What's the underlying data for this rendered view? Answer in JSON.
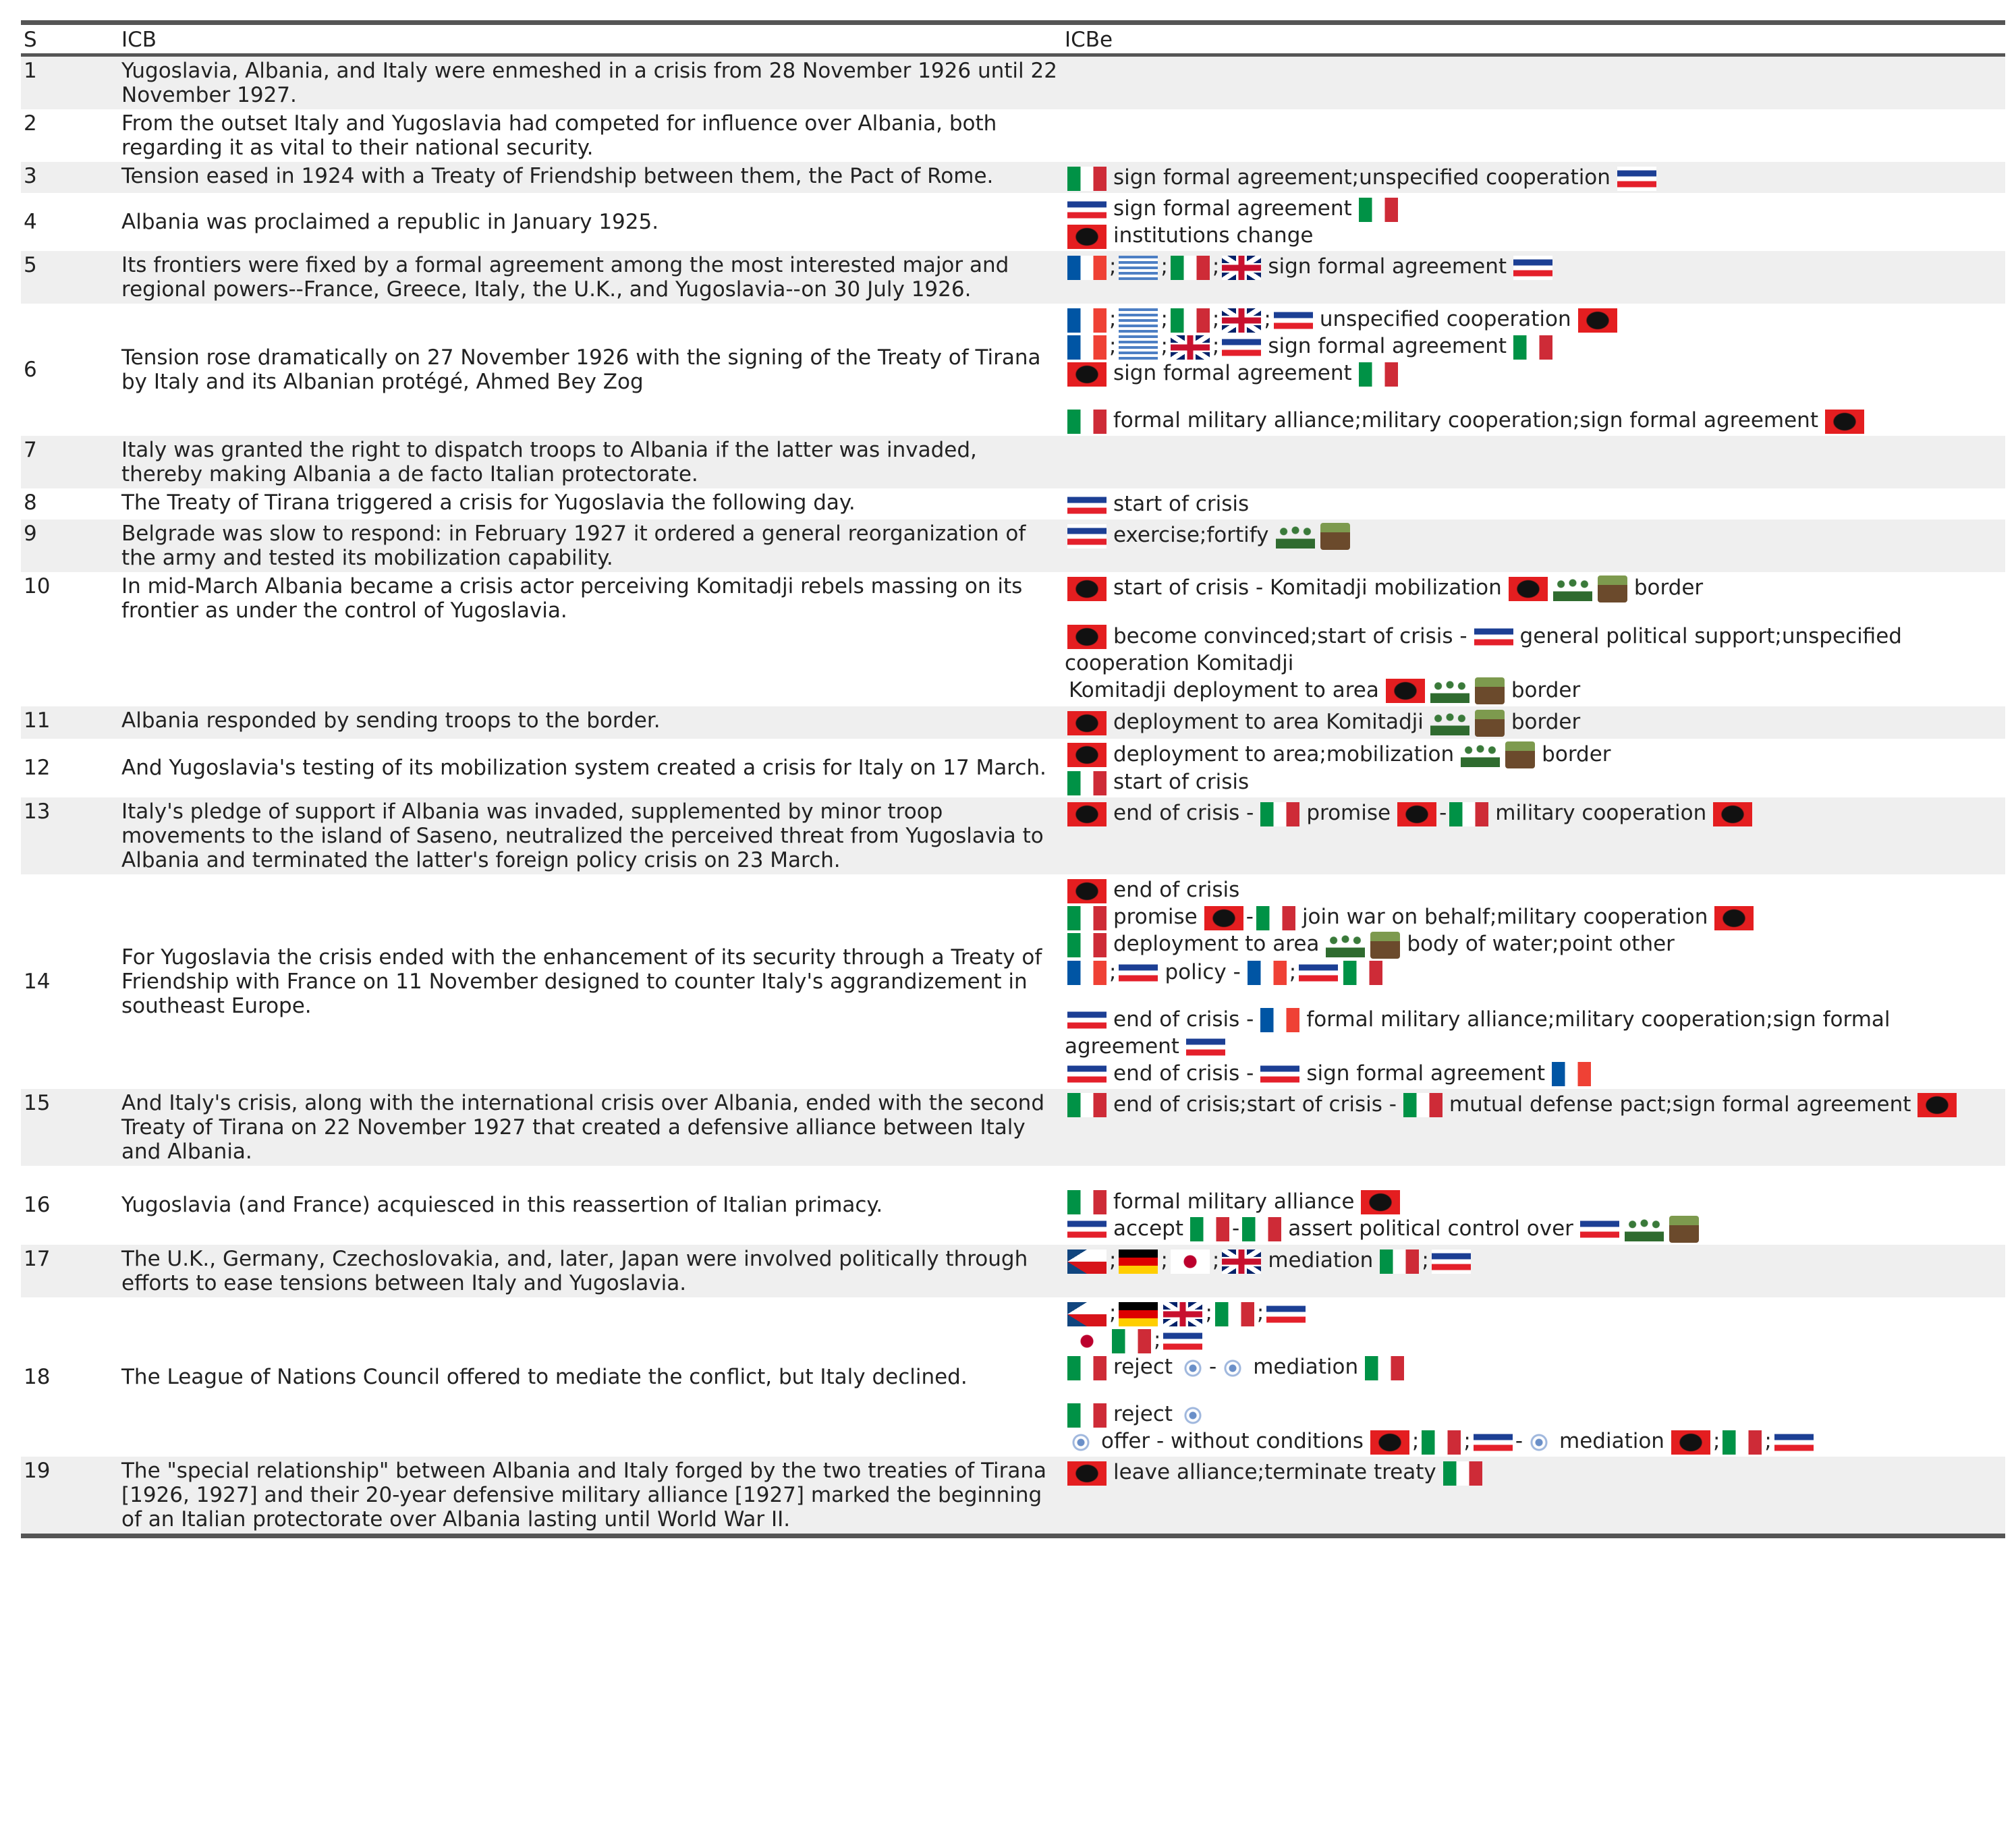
{
  "table": {
    "header": [
      "S",
      "ICB",
      "ICBe"
    ],
    "rows": [
      {
        "s": "1",
        "icb": "Yugoslavia, Albania, and Italy were enmeshed in a crisis from 28 November 1926 until 22 November 1927.",
        "lines": []
      },
      {
        "s": "2",
        "icb": "From the outset Italy and Yugoslavia had competed for influence over Albania, both regarding it as vital to their national security.",
        "lines": []
      },
      {
        "s": "3",
        "icb": "Tension eased in 1924 with a Treaty of Friendship between them, the Pact of Rome.",
        "lines": [
          [
            "sign formal agreement;unspecified cooperation"
          ]
        ]
      },
      {
        "s": "4",
        "icb": "Albania was proclaimed a republic in January 1925.",
        "lines": [
          [
            "sign formal agreement"
          ],
          [
            "institutions change"
          ]
        ]
      },
      {
        "s": "5",
        "icb": "Its frontiers were fixed by a formal agreement among the most interested major and regional powers--France, Greece, Italy, the U.K., and Yugoslavia--on 30 July 1926.",
        "lines": [
          [
            ";",
            ";",
            ";",
            "sign formal agreement"
          ]
        ]
      },
      {
        "s": "6",
        "icb": "Tension rose dramatically on 27 November 1926 with the signing of the Treaty of Tirana by Italy and its Albanian protégé, Ahmed Bey Zog",
        "lines": [
          [
            ";",
            ";",
            ";",
            ";",
            "unspecified cooperation"
          ],
          [
            ";",
            ";",
            ";",
            "sign formal agreement"
          ],
          [
            "sign formal agreement"
          ],
          [
            "formal military alliance;military cooperation;sign formal agreement"
          ]
        ]
      },
      {
        "s": "7",
        "icb": "Italy was granted the right to dispatch troops to Albania if the latter was invaded, thereby making Albania a de facto Italian protectorate.",
        "lines": []
      },
      {
        "s": "8",
        "icb": "The Treaty of Tirana triggered a crisis for Yugoslavia the following day.",
        "lines": [
          [
            "start of crisis"
          ]
        ]
      },
      {
        "s": "9",
        "icb": "Belgrade was slow to respond: in February 1927 it ordered a general reorganization of the army and tested its mobilization capability.",
        "lines": [
          [
            "exercise;fortify"
          ]
        ]
      },
      {
        "s": "10",
        "icb": "In mid-March Albania became a crisis actor perceiving Komitadji rebels massing on its frontier as under the control of Yugoslavia.",
        "lines": [
          [
            "start of crisis - Komitadji mobilization",
            "border"
          ],
          [
            "become convinced;start of crisis -",
            "general political support;unspecified cooperation Komitadji"
          ],
          [
            "Komitadji deployment to area",
            "border"
          ]
        ]
      },
      {
        "s": "11",
        "icb": "Albania responded by sending troops to the border.",
        "lines": [
          [
            "deployment to area Komitadji",
            "border"
          ]
        ]
      },
      {
        "s": "12",
        "icb": "And Yugoslavia's testing of its mobilization system created a crisis for Italy on 17 March.",
        "lines": [
          [
            "deployment to area;mobilization",
            "border"
          ],
          [
            "start of crisis"
          ]
        ]
      },
      {
        "s": "13",
        "icb": "Italy's pledge of support if Albania was invaded, supplemented by minor troop movements to the island of Saseno, neutralized the perceived threat from Yugoslavia to Albania and terminated the latter's foreign policy crisis on 23 March.",
        "lines": [
          [
            "end of crisis -",
            "promise",
            "-",
            "military cooperation"
          ]
        ]
      },
      {
        "s": "14",
        "icb": "For Yugoslavia the crisis ended with the enhancement of its security through a Treaty of Friendship with France on 11 November designed to counter Italy's aggrandizement in southeast Europe.",
        "lines": [
          [
            "end of crisis"
          ],
          [
            "promise",
            "-",
            "join war on behalf;military cooperation"
          ],
          [
            "deployment to area",
            "body of water;point other"
          ],
          [
            ";",
            "policy -",
            ";"
          ],
          [
            "end of crisis -",
            "formal military alliance;military cooperation;sign formal agreement"
          ],
          [
            "end of crisis -",
            "sign formal agreement"
          ]
        ]
      },
      {
        "s": "15",
        "icb": "And Italy's crisis, along with the international crisis over Albania, ended with the second Treaty of Tirana on 22 November 1927 that created a defensive alliance between Italy and Albania.",
        "lines": [
          [
            "end of crisis;start of crisis -",
            "mutual defense pact;sign formal agreement"
          ]
        ]
      },
      {
        "s": "16",
        "icb": "Yugoslavia (and France) acquiesced in this reassertion of Italian primacy.",
        "lines": [
          [
            "formal military alliance"
          ],
          [
            "accept",
            "-",
            "assert political control over"
          ]
        ]
      },
      {
        "s": "17",
        "icb": "The U.K., Germany, Czechoslovakia, and, later, Japan were involved politically through efforts to ease tensions between Italy and Yugoslavia.",
        "lines": [
          [
            ";",
            ";",
            ";",
            "mediation",
            ";"
          ]
        ]
      },
      {
        "s": "18",
        "icb": "The League of Nations Council offered to mediate the conflict, but Italy declined.",
        "lines": [
          [
            ";",
            ";",
            ";"
          ],
          [
            ";"
          ],
          [
            "reject",
            "-",
            "mediation"
          ],
          [
            "reject"
          ],
          [
            "offer - without conditions",
            ";",
            ";",
            "-",
            "mediation",
            ";",
            ";"
          ]
        ]
      },
      {
        "s": "19",
        "icb": "The \"special relationship\" between Albania and Italy forged by the two treaties of Tirana [1926, 1927] and their 20-year defensive military alliance [1927] marked the beginning of an Italian protectorate over Albania lasting until World War II.",
        "lines": [
          [
            "leave alliance;terminate treaty"
          ]
        ]
      }
    ]
  }
}
